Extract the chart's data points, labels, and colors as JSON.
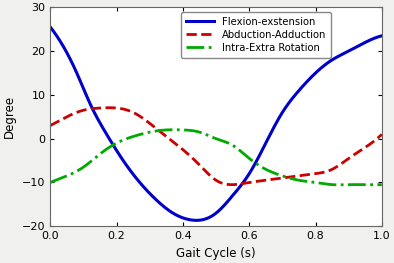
{
  "title": "",
  "xlabel": "Gait Cycle (s)",
  "ylabel": "Degree",
  "xlim": [
    0,
    1
  ],
  "ylim": [
    -20,
    30
  ],
  "xticks": [
    0,
    0.2,
    0.4,
    0.6,
    0.8,
    1.0
  ],
  "yticks": [
    -20,
    -10,
    0,
    10,
    20,
    30
  ],
  "legend": [
    {
      "label": "Flexion-exstension",
      "color": "#0000cc",
      "linestyle": "-",
      "linewidth": 2.2
    },
    {
      "label": "Abduction-Adduction",
      "color": "#cc0000",
      "linestyle": "--",
      "linewidth": 2.0
    },
    {
      "label": "Intra-Extra Rotation",
      "color": "#00aa00",
      "linestyle": "-.",
      "linewidth": 2.0
    }
  ],
  "plot_bg": "#ffffff",
  "fig_bg": "#f0f0ee",
  "flexion": {
    "x": [
      0,
      0.04,
      0.08,
      0.12,
      0.17,
      0.22,
      0.27,
      0.32,
      0.37,
      0.42,
      0.46,
      0.5,
      0.55,
      0.6,
      0.65,
      0.7,
      0.75,
      0.8,
      0.85,
      0.9,
      0.95,
      1.0
    ],
    "y": [
      25.5,
      21,
      15,
      8,
      1,
      -5,
      -10,
      -14,
      -17,
      -18.5,
      -18.5,
      -17,
      -13,
      -8,
      -1,
      6,
      11,
      15,
      18,
      20,
      22,
      23.5
    ]
  },
  "abduction": {
    "x": [
      0,
      0.05,
      0.1,
      0.15,
      0.2,
      0.25,
      0.3,
      0.35,
      0.4,
      0.45,
      0.5,
      0.55,
      0.6,
      0.65,
      0.7,
      0.75,
      0.8,
      0.85,
      0.9,
      0.95,
      1.0
    ],
    "y": [
      3.0,
      5.0,
      6.5,
      7.0,
      7.0,
      6.0,
      3.5,
      0.5,
      -2.5,
      -6.0,
      -9.5,
      -10.5,
      -10.0,
      -9.5,
      -9.0,
      -8.5,
      -8.0,
      -7.0,
      -4.5,
      -2.0,
      1.0
    ]
  },
  "rotation": {
    "x": [
      0,
      0.05,
      0.1,
      0.15,
      0.2,
      0.25,
      0.3,
      0.35,
      0.4,
      0.45,
      0.5,
      0.55,
      0.6,
      0.65,
      0.7,
      0.75,
      0.8,
      0.85,
      0.9,
      0.95,
      1.0
    ],
    "y": [
      -10,
      -8.5,
      -6.5,
      -3.5,
      -1.0,
      0.5,
      1.5,
      2.0,
      2.0,
      1.5,
      0.0,
      -1.5,
      -4.5,
      -7.0,
      -8.5,
      -9.5,
      -10.0,
      -10.5,
      -10.5,
      -10.5,
      -10.5
    ]
  }
}
